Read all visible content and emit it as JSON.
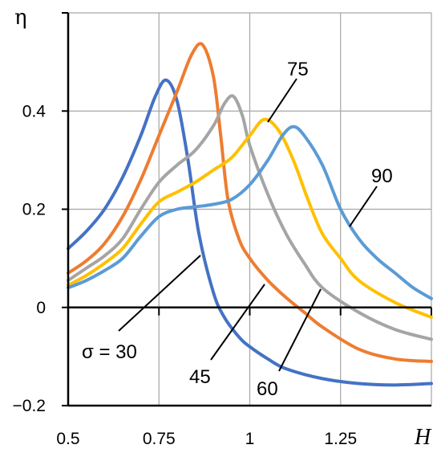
{
  "chart_data": {
    "type": "line",
    "xlabel": "H",
    "ylabel": "η",
    "xlim": [
      0.5,
      1.5
    ],
    "ylim": [
      -0.2,
      0.6
    ],
    "x_ticks": [
      0.5,
      0.75,
      1,
      1.25
    ],
    "x_tick_labels": [
      "0.5",
      "0.75",
      "1",
      "1.25"
    ],
    "y_ticks": [
      -0.2,
      0,
      0.2,
      0.4
    ],
    "y_tick_labels": [
      "−0.2",
      "0",
      "0.2",
      "0.4"
    ],
    "grid": true,
    "series": [
      {
        "name": "σ = 30",
        "color": "#4472C4",
        "points": [
          [
            0.5,
            0.12
          ],
          [
            0.55,
            0.155
          ],
          [
            0.6,
            0.2
          ],
          [
            0.65,
            0.265
          ],
          [
            0.7,
            0.35
          ],
          [
            0.74,
            0.43
          ],
          [
            0.77,
            0.463
          ],
          [
            0.8,
            0.42
          ],
          [
            0.83,
            0.3
          ],
          [
            0.86,
            0.15
          ],
          [
            0.9,
            0.03
          ],
          [
            0.93,
            -0.02
          ],
          [
            0.97,
            -0.06
          ],
          [
            1.0,
            -0.08
          ],
          [
            1.05,
            -0.105
          ],
          [
            1.1,
            -0.125
          ],
          [
            1.2,
            -0.145
          ],
          [
            1.3,
            -0.155
          ],
          [
            1.4,
            -0.158
          ],
          [
            1.5,
            -0.155
          ]
        ]
      },
      {
        "name": "45",
        "color": "#ED7D31",
        "points": [
          [
            0.5,
            0.07
          ],
          [
            0.55,
            0.095
          ],
          [
            0.6,
            0.13
          ],
          [
            0.65,
            0.185
          ],
          [
            0.7,
            0.26
          ],
          [
            0.75,
            0.35
          ],
          [
            0.8,
            0.44
          ],
          [
            0.84,
            0.515
          ],
          [
            0.87,
            0.535
          ],
          [
            0.9,
            0.47
          ],
          [
            0.92,
            0.35
          ],
          [
            0.94,
            0.22
          ],
          [
            0.97,
            0.14
          ],
          [
            1.0,
            0.1
          ],
          [
            1.05,
            0.055
          ],
          [
            1.1,
            0.02
          ],
          [
            1.15,
            -0.01
          ],
          [
            1.2,
            -0.04
          ],
          [
            1.3,
            -0.085
          ],
          [
            1.4,
            -0.105
          ],
          [
            1.5,
            -0.11
          ]
        ]
      },
      {
        "name": "60",
        "color": "#A5A5A5",
        "points": [
          [
            0.5,
            0.055
          ],
          [
            0.55,
            0.08
          ],
          [
            0.6,
            0.105
          ],
          [
            0.65,
            0.14
          ],
          [
            0.7,
            0.2
          ],
          [
            0.75,
            0.255
          ],
          [
            0.8,
            0.29
          ],
          [
            0.85,
            0.32
          ],
          [
            0.9,
            0.37
          ],
          [
            0.93,
            0.415
          ],
          [
            0.955,
            0.43
          ],
          [
            0.98,
            0.39
          ],
          [
            1.0,
            0.33
          ],
          [
            1.05,
            0.23
          ],
          [
            1.1,
            0.15
          ],
          [
            1.15,
            0.09
          ],
          [
            1.2,
            0.04
          ],
          [
            1.3,
            -0.01
          ],
          [
            1.4,
            -0.045
          ],
          [
            1.5,
            -0.065
          ]
        ]
      },
      {
        "name": "75",
        "color": "#FFC000",
        "points": [
          [
            0.5,
            0.045
          ],
          [
            0.55,
            0.065
          ],
          [
            0.6,
            0.09
          ],
          [
            0.65,
            0.12
          ],
          [
            0.7,
            0.17
          ],
          [
            0.75,
            0.215
          ],
          [
            0.8,
            0.235
          ],
          [
            0.85,
            0.255
          ],
          [
            0.9,
            0.28
          ],
          [
            0.95,
            0.305
          ],
          [
            1.0,
            0.35
          ],
          [
            1.04,
            0.383
          ],
          [
            1.08,
            0.36
          ],
          [
            1.12,
            0.3
          ],
          [
            1.16,
            0.22
          ],
          [
            1.2,
            0.15
          ],
          [
            1.25,
            0.1
          ],
          [
            1.3,
            0.055
          ],
          [
            1.4,
            0.01
          ],
          [
            1.5,
            -0.02
          ]
        ]
      },
      {
        "name": "90",
        "color": "#5B9BD5",
        "points": [
          [
            0.5,
            0.04
          ],
          [
            0.55,
            0.055
          ],
          [
            0.6,
            0.075
          ],
          [
            0.65,
            0.1
          ],
          [
            0.7,
            0.145
          ],
          [
            0.75,
            0.185
          ],
          [
            0.8,
            0.2
          ],
          [
            0.85,
            0.205
          ],
          [
            0.9,
            0.21
          ],
          [
            0.95,
            0.22
          ],
          [
            1.0,
            0.25
          ],
          [
            1.05,
            0.3
          ],
          [
            1.09,
            0.35
          ],
          [
            1.12,
            0.368
          ],
          [
            1.15,
            0.35
          ],
          [
            1.2,
            0.29
          ],
          [
            1.25,
            0.2
          ],
          [
            1.3,
            0.14
          ],
          [
            1.35,
            0.1
          ],
          [
            1.4,
            0.07
          ],
          [
            1.45,
            0.04
          ],
          [
            1.5,
            0.018
          ]
        ]
      }
    ],
    "annotations": [
      {
        "text": "σ = 30",
        "series": "σ = 30"
      },
      {
        "text": "45",
        "series": "45"
      },
      {
        "text": "60",
        "series": "60"
      },
      {
        "text": "75",
        "series": "75"
      },
      {
        "text": "90",
        "series": "90"
      }
    ]
  }
}
